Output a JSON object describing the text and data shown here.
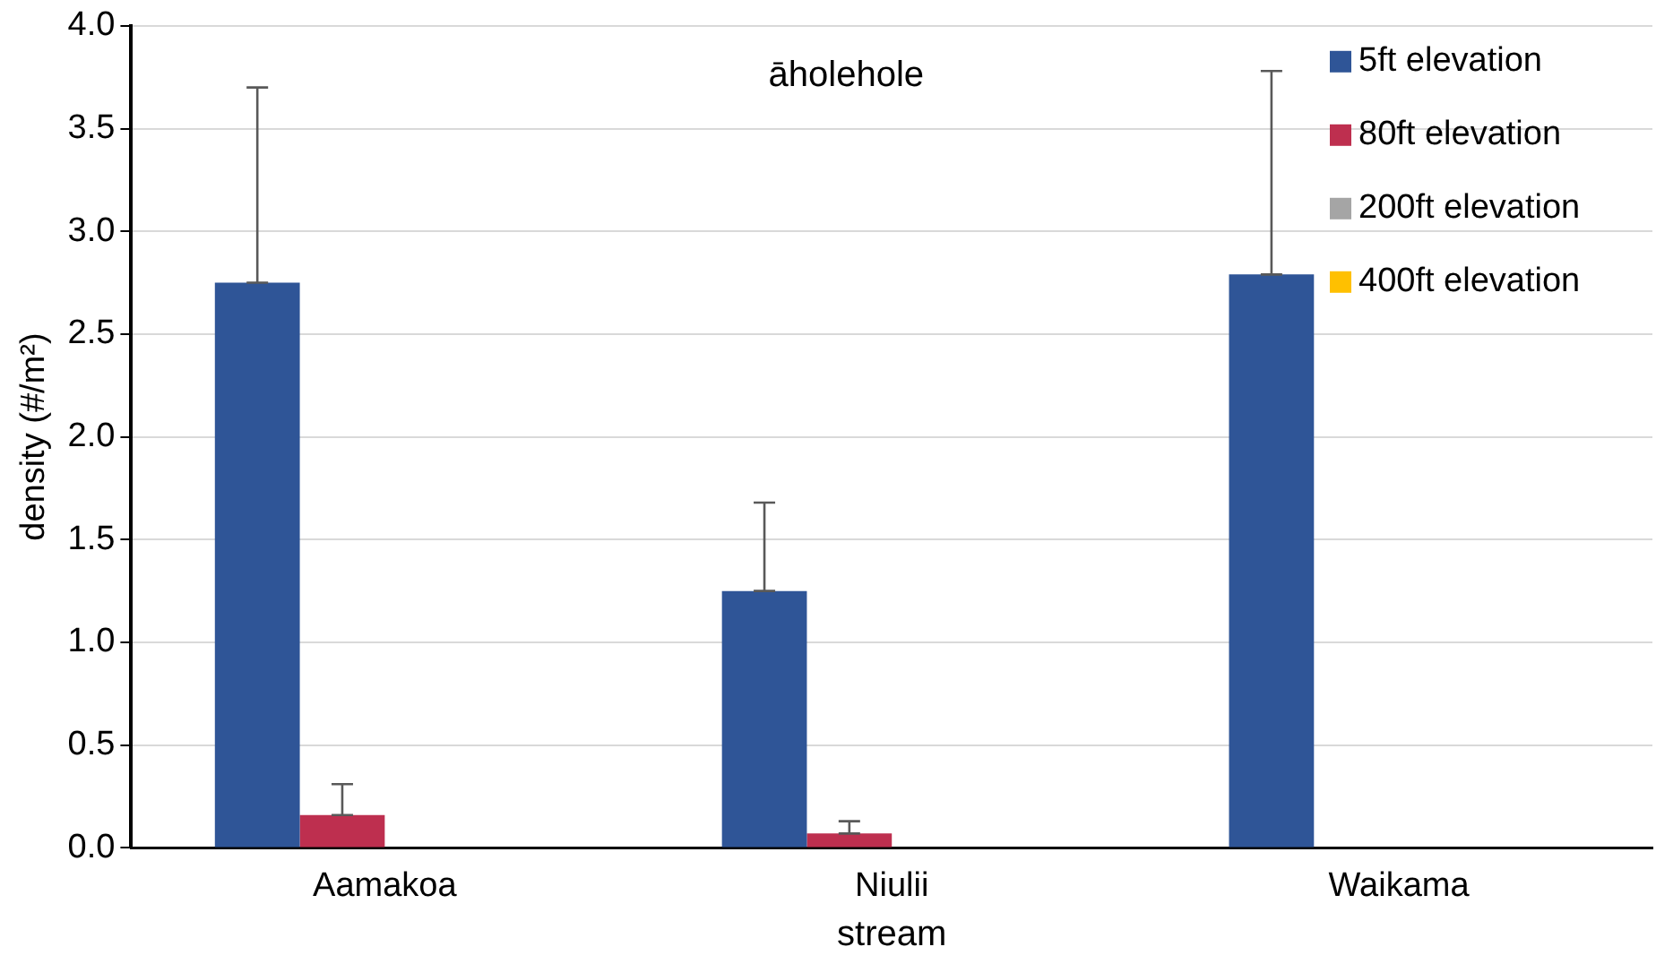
{
  "chart_data": {
    "type": "bar",
    "title": "āholehole",
    "xlabel": "stream",
    "ylabel": "density (#/m²)",
    "categories": [
      "Aamakoa",
      "Niulii",
      "Waikama"
    ],
    "series": [
      {
        "name": "5ft elevation",
        "color": "#2f5597",
        "values": [
          2.75,
          1.25,
          2.79
        ],
        "errors": [
          [
            2.75,
            3.7
          ],
          [
            1.25,
            1.68
          ],
          [
            2.79,
            3.78
          ]
        ]
      },
      {
        "name": "80ft elevation",
        "color": "#be2f4f",
        "values": [
          0.16,
          0.07,
          0
        ],
        "errors": [
          [
            0.16,
            0.31
          ],
          [
            0.07,
            0.13
          ],
          null
        ]
      },
      {
        "name": "200ft elevation",
        "color": "#a5a5a5",
        "values": [
          0,
          0,
          0
        ]
      },
      {
        "name": "400ft elevation",
        "color": "#ffc000",
        "values": [
          0,
          0,
          0
        ]
      }
    ],
    "ylim": [
      0,
      4
    ],
    "yticks": [
      {
        "value": 0,
        "label": "0.0"
      },
      {
        "value": 0.5,
        "label": "0.5"
      },
      {
        "value": 1,
        "label": "1.0"
      },
      {
        "value": 1.5,
        "label": "1.5"
      },
      {
        "value": 2,
        "label": "2.0"
      },
      {
        "value": 2.5,
        "label": "2.5"
      },
      {
        "value": 3,
        "label": "3.0"
      },
      {
        "value": 3.5,
        "label": "3.5"
      },
      {
        "value": 4,
        "label": "4.0"
      }
    ],
    "grid": "y",
    "legend": "top right"
  }
}
